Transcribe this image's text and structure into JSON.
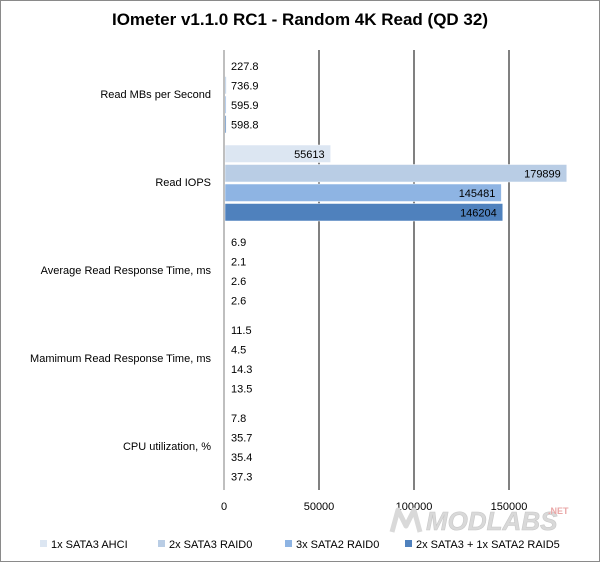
{
  "chart_data": {
    "type": "bar",
    "orientation": "horizontal",
    "title": "IOmeter v1.1.0 RC1 - Random 4K Read (QD 32)",
    "categories": [
      "Read MBs per Second",
      "Read IOPS",
      "Average Read Response Time, ms",
      "Mamimum  Read Response Time, ms",
      "CPU utilization,  %"
    ],
    "series": [
      {
        "name": "1x SATA3 AHCI",
        "color": "#dce6f2",
        "values": [
          227.8,
          55613,
          6.9,
          11.5,
          7.8
        ]
      },
      {
        "name": "2x SATA3 RAID0",
        "color": "#b9cde5",
        "values": [
          736.9,
          179899,
          2.1,
          4.5,
          35.7
        ]
      },
      {
        "name": "3x SATA2 RAID0",
        "color": "#8eb4e3",
        "values": [
          595.9,
          145481,
          2.6,
          14.3,
          35.4
        ]
      },
      {
        "name": "2x SATA3 + 1x SATA2 RAID5",
        "color": "#4f81bd",
        "values": [
          598.8,
          146204,
          2.6,
          13.5,
          37.3
        ]
      }
    ],
    "data_labels": [
      [
        "227.8",
        "55613",
        "6.9",
        "11.5",
        "7.8"
      ],
      [
        "736.9",
        "179899",
        "2.1",
        "4.5",
        "35.7"
      ],
      [
        "595.9",
        "145481",
        "2.6",
        "14.3",
        "35.4"
      ],
      [
        "598.8",
        "146204",
        "2.6",
        "13.5",
        "37.3"
      ]
    ],
    "x_ticks": [
      "0",
      "50000",
      "100000",
      "150000"
    ],
    "xlim": [
      0,
      200000
    ],
    "grid": true,
    "legend": "bottom"
  },
  "watermark": {
    "text": "MODLABS",
    "suffix": ".NET"
  }
}
